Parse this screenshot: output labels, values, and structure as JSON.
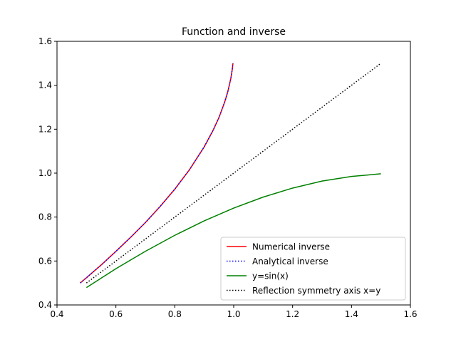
{
  "chart_data": {
    "type": "line",
    "title": "Function and inverse",
    "xlabel": "",
    "ylabel": "",
    "xlim": [
      0.4,
      1.6
    ],
    "ylim": [
      0.4,
      1.6
    ],
    "xticks": [
      0.4,
      0.6,
      0.8,
      1.0,
      1.2,
      1.4,
      1.6
    ],
    "yticks": [
      0.4,
      0.6,
      0.8,
      1.0,
      1.2,
      1.4,
      1.6
    ],
    "xtick_labels": [
      "0.4",
      "0.6",
      "0.8",
      "1.0",
      "1.2",
      "1.4",
      "1.6"
    ],
    "ytick_labels": [
      "0.4",
      "0.6",
      "0.8",
      "1.0",
      "1.2",
      "1.4",
      "1.6"
    ],
    "grid": false,
    "legend_position": "lower-right",
    "series": [
      {
        "name": "Numerical inverse",
        "color": "#ff0000",
        "style": "solid",
        "x": [
          0.479,
          0.5,
          0.55,
          0.6,
          0.65,
          0.7,
          0.75,
          0.8,
          0.85,
          0.9,
          0.93,
          0.95,
          0.97,
          0.98,
          0.99,
          0.995,
          0.9975
        ],
        "y": [
          0.5,
          0.524,
          0.582,
          0.644,
          0.708,
          0.775,
          0.848,
          0.927,
          1.016,
          1.12,
          1.195,
          1.253,
          1.326,
          1.371,
          1.429,
          1.471,
          1.5
        ]
      },
      {
        "name": "Analytical inverse",
        "color": "#0000ff",
        "style": "dotted",
        "x": [
          0.479,
          0.5,
          0.55,
          0.6,
          0.65,
          0.7,
          0.75,
          0.8,
          0.85,
          0.9,
          0.93,
          0.95,
          0.97,
          0.98,
          0.99,
          0.995,
          0.9975
        ],
        "y": [
          0.5,
          0.524,
          0.582,
          0.644,
          0.708,
          0.775,
          0.848,
          0.927,
          1.016,
          1.12,
          1.195,
          1.253,
          1.326,
          1.371,
          1.429,
          1.471,
          1.5
        ]
      },
      {
        "name": "y=sin(x)",
        "color": "#008000",
        "style": "solid",
        "x": [
          0.5,
          0.6,
          0.7,
          0.8,
          0.9,
          1.0,
          1.1,
          1.2,
          1.3,
          1.4,
          1.5
        ],
        "y": [
          0.479,
          0.565,
          0.644,
          0.717,
          0.783,
          0.841,
          0.891,
          0.932,
          0.964,
          0.985,
          0.997
        ]
      },
      {
        "name": "Reflection symmetry axis x=y",
        "color": "#000000",
        "style": "dotted",
        "x": [
          0.5,
          1.5
        ],
        "y": [
          0.5,
          1.5
        ]
      }
    ]
  }
}
